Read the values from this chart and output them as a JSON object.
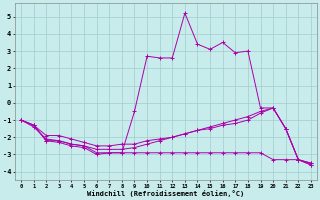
{
  "xlabel": "Windchill (Refroidissement éolien,°C)",
  "background_color": "#c8ecec",
  "grid_color": "#a0cccc",
  "line_color": "#aa00aa",
  "xlim": [
    -0.5,
    23.5
  ],
  "ylim": [
    -4.5,
    5.8
  ],
  "xticks": [
    0,
    1,
    2,
    3,
    4,
    5,
    6,
    7,
    8,
    9,
    10,
    11,
    12,
    13,
    14,
    15,
    16,
    17,
    18,
    19,
    20,
    21,
    22,
    23
  ],
  "yticks": [
    -4,
    -3,
    -2,
    -1,
    0,
    1,
    2,
    3,
    4,
    5
  ],
  "series": [
    {
      "x": [
        0,
        1,
        2,
        3,
        4,
        5,
        6,
        7,
        8,
        9,
        10,
        11,
        12,
        13,
        14,
        15,
        16,
        17,
        18,
        19,
        20,
        21,
        22,
        23
      ],
      "y": [
        -1.0,
        -1.4,
        -2.1,
        -2.2,
        -2.4,
        -2.5,
        -2.9,
        -2.9,
        -2.9,
        -0.5,
        2.7,
        2.6,
        2.6,
        5.2,
        3.4,
        3.1,
        3.5,
        2.9,
        3.0,
        -0.3,
        -0.3,
        -1.5,
        -3.3,
        -3.6
      ]
    },
    {
      "x": [
        0,
        1,
        2,
        3,
        4,
        5,
        6,
        7,
        8,
        9,
        10,
        11,
        12,
        13,
        14,
        15,
        16,
        17,
        18,
        19,
        20,
        21,
        22,
        23
      ],
      "y": [
        -1.0,
        -1.3,
        -1.9,
        -1.9,
        -2.1,
        -2.3,
        -2.5,
        -2.5,
        -2.4,
        -2.4,
        -2.2,
        -2.1,
        -2.0,
        -1.8,
        -1.6,
        -1.5,
        -1.3,
        -1.2,
        -1.0,
        -0.6,
        -0.3,
        -1.5,
        -3.3,
        -3.5
      ]
    },
    {
      "x": [
        0,
        1,
        2,
        3,
        4,
        5,
        6,
        7,
        8,
        9,
        10,
        11,
        12,
        13,
        14,
        15,
        16,
        17,
        18,
        19,
        20,
        21,
        22,
        23
      ],
      "y": [
        -1.0,
        -1.3,
        -2.2,
        -2.2,
        -2.4,
        -2.5,
        -2.7,
        -2.7,
        -2.7,
        -2.6,
        -2.4,
        -2.2,
        -2.0,
        -1.8,
        -1.6,
        -1.4,
        -1.2,
        -1.0,
        -0.8,
        -0.5,
        -0.3,
        -1.5,
        -3.3,
        -3.6
      ]
    },
    {
      "x": [
        0,
        1,
        2,
        3,
        4,
        5,
        6,
        7,
        8,
        9,
        10,
        11,
        12,
        13,
        14,
        15,
        16,
        17,
        18,
        19,
        20,
        21,
        22,
        23
      ],
      "y": [
        -1.0,
        -1.3,
        -2.2,
        -2.3,
        -2.5,
        -2.6,
        -3.0,
        -2.9,
        -2.9,
        -2.9,
        -2.9,
        -2.9,
        -2.9,
        -2.9,
        -2.9,
        -2.9,
        -2.9,
        -2.9,
        -2.9,
        -2.9,
        -3.3,
        -3.3,
        -3.3,
        -3.5
      ]
    }
  ]
}
